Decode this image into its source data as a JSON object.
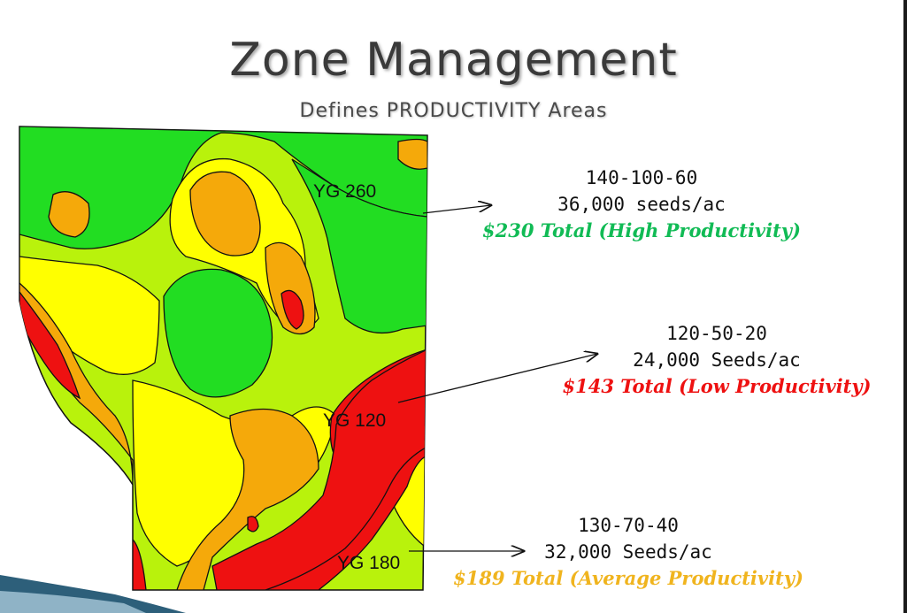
{
  "slide": {
    "title": "Zone Management",
    "subtitle": "Defines PRODUCTIVITY Areas"
  },
  "map": {
    "colors": {
      "high": "#22dd22",
      "mid_high": "#b9f20c",
      "mid": "#ffff00",
      "mid_low": "#f5a90a",
      "low": "#ee1111",
      "outline": "#111111"
    },
    "labels": {
      "yg_high": "YG 260",
      "yg_low": "YG 120",
      "yg_avg": "YG 180"
    }
  },
  "zones": {
    "high": {
      "rates": "140-100-60",
      "seeds": "36,000 seeds/ac",
      "total": "$230 Total (High Productivity)",
      "color": "#11bb55"
    },
    "low": {
      "rates": "120-50-20",
      "seeds": "24,000  Seeds/ac",
      "total": "$143 Total (Low Productivity)",
      "color": "#ee1111"
    },
    "average": {
      "rates": "130-70-40",
      "seeds": "32,000 Seeds/ac",
      "total": "$189 Total (Average Productivity)",
      "color": "#f0b41e"
    }
  }
}
